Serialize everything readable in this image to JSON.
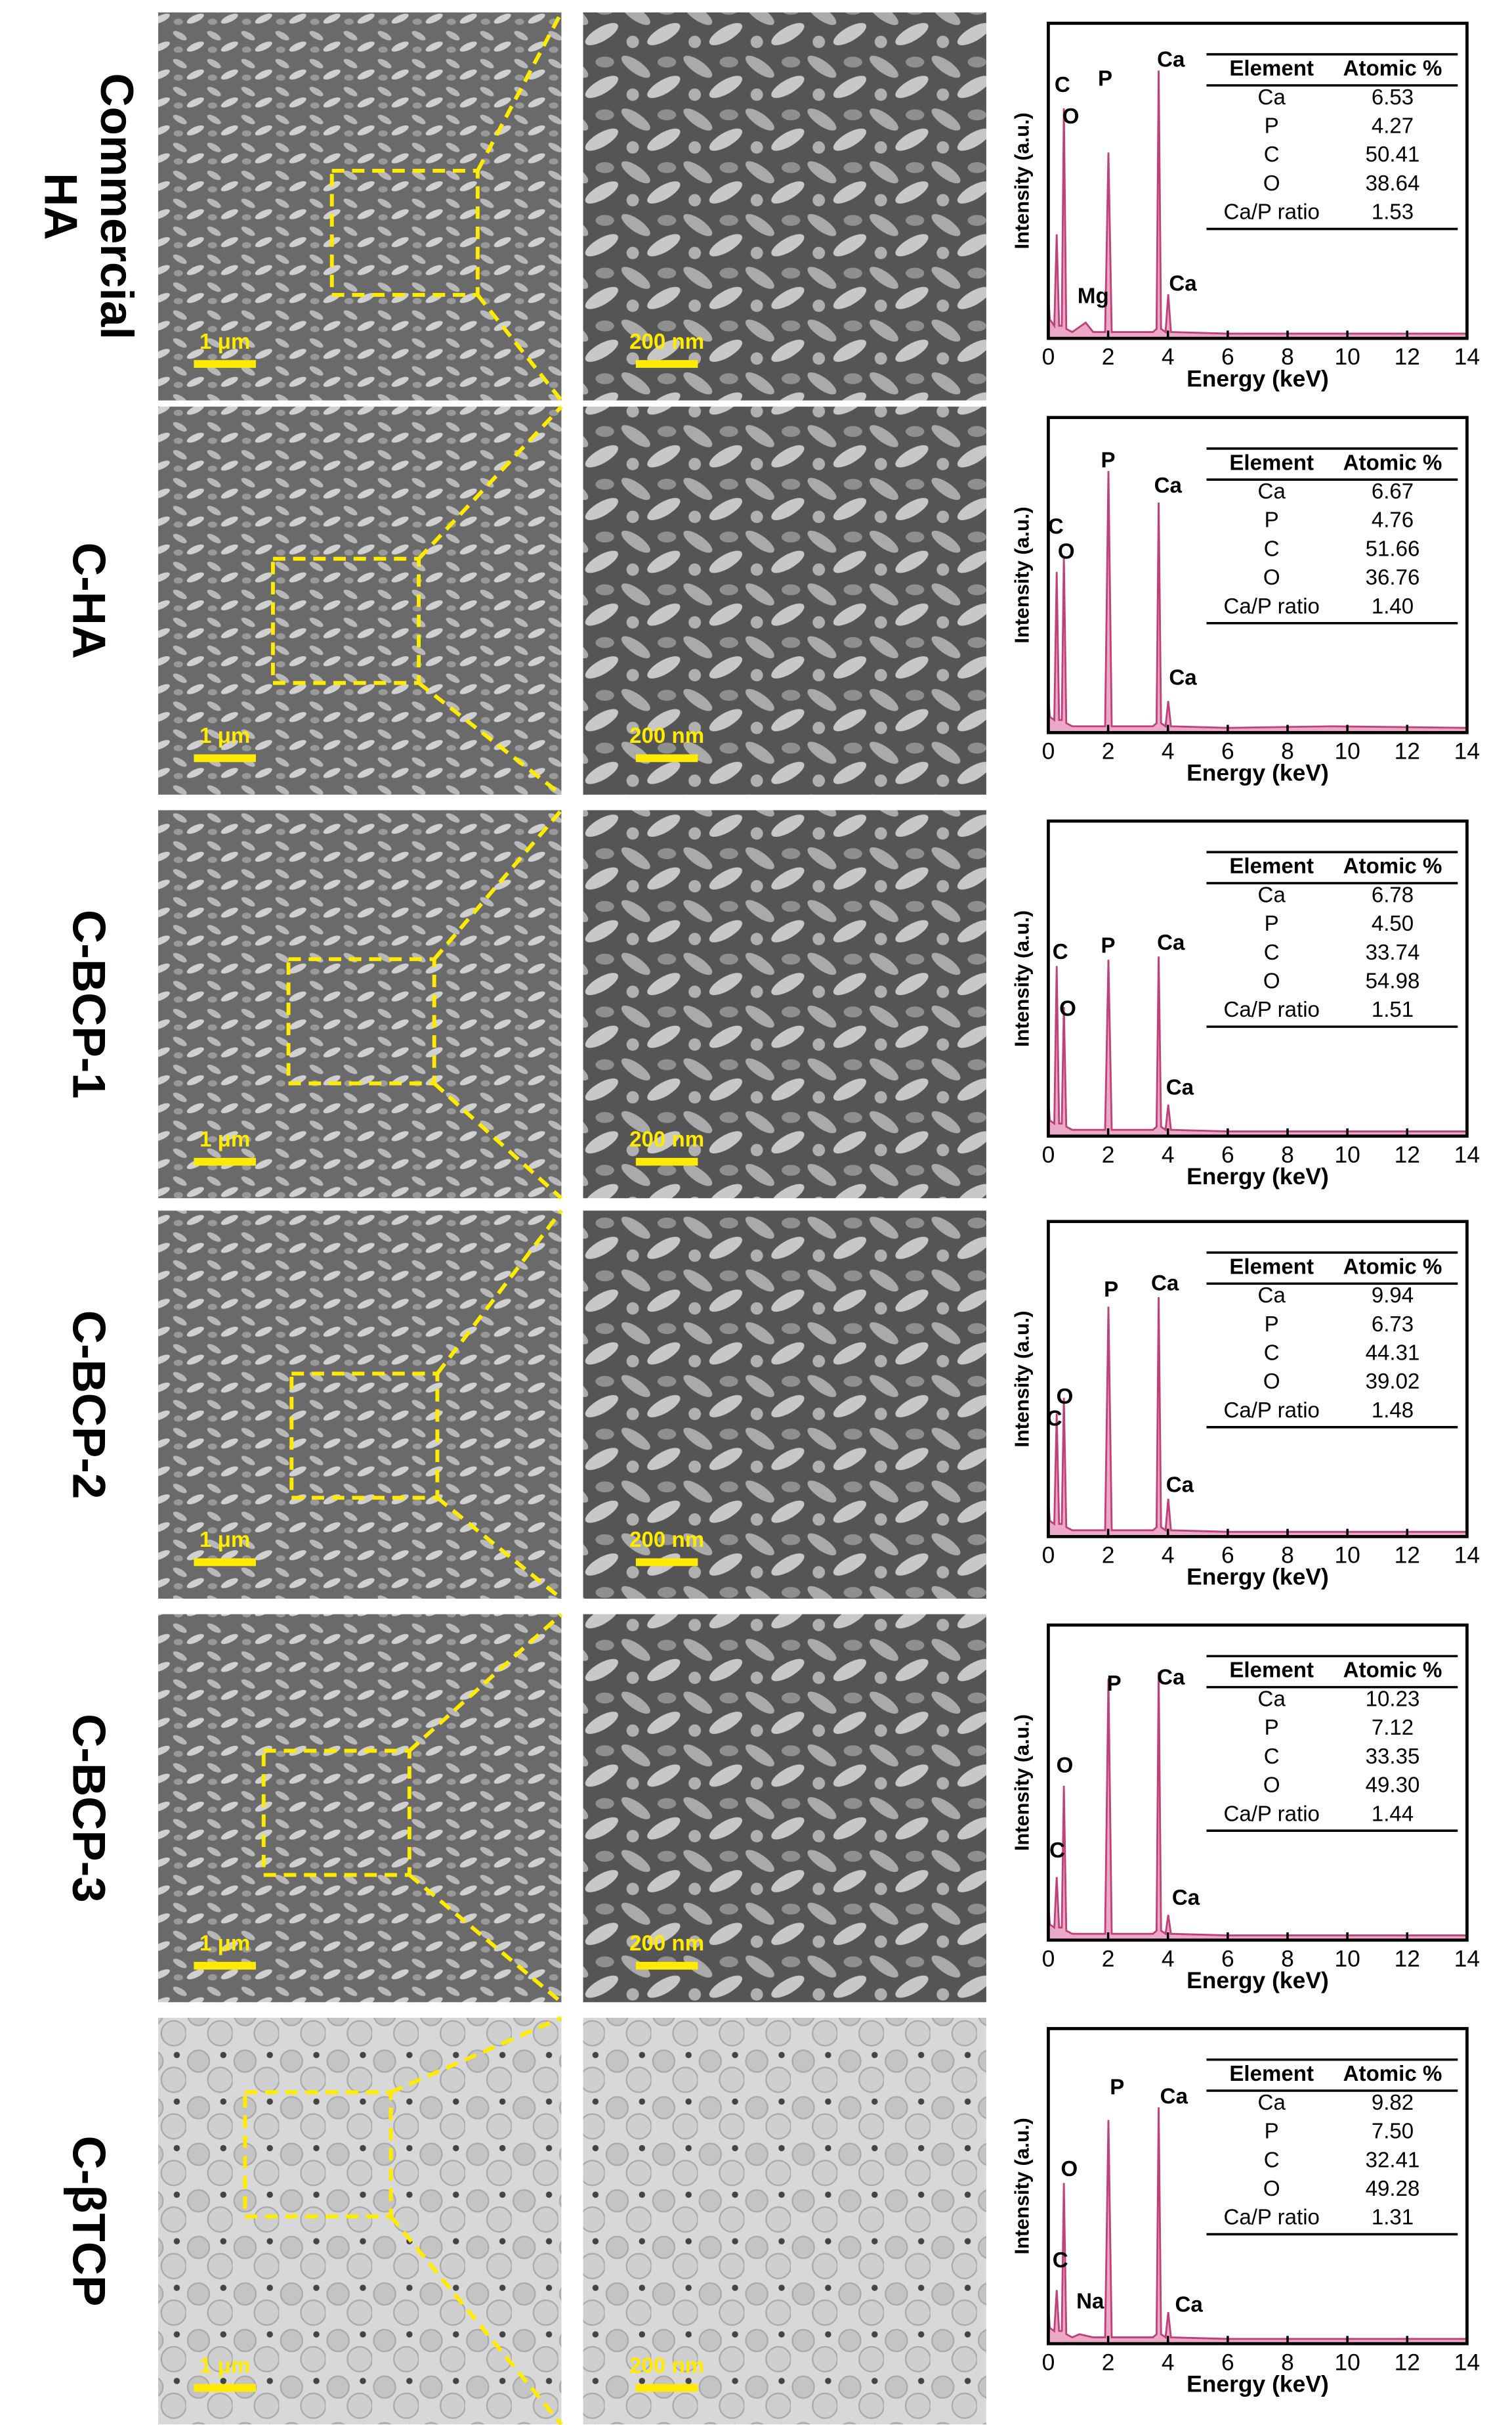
{
  "rows": [
    {
      "label": [
        "Commercial",
        "HA"
      ],
      "scale_bars": [
        "1 μm",
        "200 nm"
      ]
    },
    {
      "label": [
        "C-HA"
      ],
      "scale_bars": [
        "1 μm",
        "200 nm"
      ]
    },
    {
      "label": [
        "C-BCP-1"
      ],
      "scale_bars": [
        "1 μm",
        "200 nm"
      ]
    },
    {
      "label": [
        "C-BCP-2"
      ],
      "scale_bars": [
        "1 μm",
        "200 nm"
      ]
    },
    {
      "label": [
        "C-BCP-3"
      ],
      "scale_bars": [
        "1 μm",
        "200 nm"
      ]
    },
    {
      "label": [
        "C-βTCP"
      ],
      "scale_bars": [
        "1 μm",
        "200 nm"
      ]
    }
  ],
  "chart_data": [
    {
      "type": "line",
      "xlabel": "Energy (keV)",
      "ylabel": "Intensity (a.u.)",
      "xlim": [
        0,
        14
      ],
      "xticks": [
        0,
        2,
        4,
        6,
        8,
        10,
        12,
        14
      ],
      "ylim": [
        0,
        100
      ],
      "color": "#e58cb4",
      "x": [
        0,
        0.05,
        0.2,
        0.28,
        0.36,
        0.45,
        0.52,
        0.6,
        0.8,
        1.25,
        1.5,
        1.9,
        2.01,
        2.12,
        3.5,
        3.62,
        3.69,
        3.77,
        3.92,
        4.01,
        4.1,
        6,
        9.5,
        14
      ],
      "values": [
        14,
        6,
        4,
        33,
        4,
        4,
        73,
        3,
        2,
        5,
        2,
        2,
        59,
        2,
        2,
        3,
        85,
        3,
        2,
        14,
        2,
        1.5,
        1.5,
        1.5
      ],
      "annotations": [
        {
          "text": "C",
          "x": 0.47,
          "y": 80
        },
        {
          "text": "O",
          "x": 0.75,
          "y": 70
        },
        {
          "text": "P",
          "x": 1.9,
          "y": 82
        },
        {
          "text": "Ca",
          "x": 4.1,
          "y": 88
        },
        {
          "text": "Ca",
          "x": 4.5,
          "y": 17
        },
        {
          "text": "Mg",
          "x": 1.5,
          "y": 13
        }
      ],
      "table": {
        "header": [
          "Element",
          "Atomic %"
        ],
        "rows": [
          [
            "Ca",
            "6.53"
          ],
          [
            "P",
            "4.27"
          ],
          [
            "C",
            "50.41"
          ],
          [
            "O",
            "38.64"
          ],
          [
            "Ca/P ratio",
            "1.53"
          ]
        ]
      }
    },
    {
      "type": "line",
      "xlabel": "Energy (keV)",
      "ylabel": "Intensity (a.u.)",
      "xlim": [
        0,
        14
      ],
      "xticks": [
        0,
        2,
        4,
        6,
        8,
        10,
        12,
        14
      ],
      "ylim": [
        0,
        100
      ],
      "color": "#e58cb4",
      "x": [
        0,
        0.05,
        0.2,
        0.28,
        0.36,
        0.45,
        0.52,
        0.6,
        0.8,
        1.25,
        1.5,
        1.9,
        2.01,
        2.12,
        3.5,
        3.62,
        3.69,
        3.77,
        3.92,
        4.01,
        4.1,
        6,
        9.5,
        14
      ],
      "values": [
        12,
        5,
        4,
        51,
        4,
        4,
        56,
        3,
        2,
        2,
        2,
        2,
        83,
        2,
        2,
        3,
        73,
        3,
        2,
        10,
        2,
        1.5,
        2,
        1.5
      ],
      "annotations": [
        {
          "text": "C",
          "x": 0.25,
          "y": 65
        },
        {
          "text": "O",
          "x": 0.6,
          "y": 57
        },
        {
          "text": "P",
          "x": 2.0,
          "y": 86
        },
        {
          "text": "Ca",
          "x": 4.0,
          "y": 78
        },
        {
          "text": "Ca",
          "x": 4.5,
          "y": 17
        }
      ],
      "table": {
        "header": [
          "Element",
          "Atomic %"
        ],
        "rows": [
          [
            "Ca",
            "6.67"
          ],
          [
            "P",
            "4.76"
          ],
          [
            "C",
            "51.66"
          ],
          [
            "O",
            "36.76"
          ],
          [
            "Ca/P ratio",
            "1.40"
          ]
        ]
      }
    },
    {
      "type": "line",
      "xlabel": "Energy (keV)",
      "ylabel": "Intensity (a.u.)",
      "xlim": [
        0,
        14
      ],
      "xticks": [
        0,
        2,
        4,
        6,
        8,
        10,
        12,
        14
      ],
      "ylim": [
        0,
        100
      ],
      "color": "#e58cb4",
      "x": [
        0,
        0.05,
        0.2,
        0.28,
        0.36,
        0.45,
        0.52,
        0.6,
        0.8,
        1.25,
        1.5,
        1.9,
        2.01,
        2.12,
        3.5,
        3.62,
        3.69,
        3.77,
        3.92,
        4.01,
        4.1,
        6,
        9.5,
        14
      ],
      "values": [
        12,
        5,
        4,
        54,
        4,
        4,
        41,
        3,
        2,
        2,
        2,
        2,
        56,
        2,
        2,
        3,
        57,
        3,
        2,
        10,
        2,
        1.5,
        1.5,
        1.5
      ],
      "annotations": [
        {
          "text": "C",
          "x": 0.4,
          "y": 58
        },
        {
          "text": "O",
          "x": 0.65,
          "y": 40
        },
        {
          "text": "P",
          "x": 2.0,
          "y": 60
        },
        {
          "text": "Ca",
          "x": 4.1,
          "y": 61
        },
        {
          "text": "Ca",
          "x": 4.4,
          "y": 15
        }
      ],
      "table": {
        "header": [
          "Element",
          "Atomic %"
        ],
        "rows": [
          [
            "Ca",
            "6.78"
          ],
          [
            "P",
            "4.50"
          ],
          [
            "C",
            "33.74"
          ],
          [
            "O",
            "54.98"
          ],
          [
            "Ca/P ratio",
            "1.51"
          ]
        ]
      }
    },
    {
      "type": "line",
      "xlabel": "Energy (keV)",
      "ylabel": "Intensity (a.u.)",
      "xlim": [
        0,
        14
      ],
      "xticks": [
        0,
        2,
        4,
        6,
        8,
        10,
        12,
        14
      ],
      "ylim": [
        0,
        100
      ],
      "color": "#e58cb4",
      "x": [
        0,
        0.05,
        0.2,
        0.28,
        0.36,
        0.45,
        0.52,
        0.6,
        0.8,
        1.25,
        1.5,
        1.9,
        2.01,
        2.12,
        3.5,
        3.62,
        3.69,
        3.77,
        3.92,
        4.01,
        4.1,
        6,
        9.5,
        14
      ],
      "values": [
        12,
        5,
        4,
        39,
        4,
        4,
        44,
        3,
        2,
        2,
        2,
        2,
        73,
        2,
        2,
        3,
        76,
        3,
        2,
        12,
        2,
        1.5,
        1.5,
        1.5
      ],
      "annotations": [
        {
          "text": "C",
          "x": 0.2,
          "y": 37
        },
        {
          "text": "O",
          "x": 0.55,
          "y": 44
        },
        {
          "text": "P",
          "x": 2.1,
          "y": 78
        },
        {
          "text": "Ca",
          "x": 3.9,
          "y": 80
        },
        {
          "text": "Ca",
          "x": 4.4,
          "y": 16
        }
      ],
      "table": {
        "header": [
          "Element",
          "Atomic %"
        ],
        "rows": [
          [
            "Ca",
            "9.94"
          ],
          [
            "P",
            "6.73"
          ],
          [
            "C",
            "44.31"
          ],
          [
            "O",
            "39.02"
          ],
          [
            "Ca/P ratio",
            "1.48"
          ]
        ]
      }
    },
    {
      "type": "line",
      "xlabel": "Energy (keV)",
      "ylabel": "Intensity (a.u.)",
      "xlim": [
        0,
        14
      ],
      "xticks": [
        0,
        2,
        4,
        6,
        8,
        10,
        12,
        14
      ],
      "ylim": [
        0,
        100
      ],
      "color": "#e58cb4",
      "x": [
        0,
        0.05,
        0.2,
        0.28,
        0.36,
        0.45,
        0.52,
        0.6,
        0.8,
        1.25,
        1.5,
        1.9,
        2.01,
        2.12,
        3.5,
        3.62,
        3.69,
        3.77,
        3.92,
        4.01,
        4.1,
        6,
        9.5,
        14
      ],
      "values": [
        12,
        5,
        4,
        20,
        4,
        4,
        49,
        3,
        2,
        2,
        2,
        2,
        83,
        2,
        2,
        3,
        85,
        3,
        2,
        8,
        2,
        1.5,
        1.5,
        1.5
      ],
      "annotations": [
        {
          "text": "C",
          "x": 0.3,
          "y": 28
        },
        {
          "text": "O",
          "x": 0.55,
          "y": 55
        },
        {
          "text": "P",
          "x": 2.2,
          "y": 81
        },
        {
          "text": "Ca",
          "x": 4.1,
          "y": 83
        },
        {
          "text": "Ca",
          "x": 4.6,
          "y": 13
        }
      ],
      "table": {
        "header": [
          "Element",
          "Atomic %"
        ],
        "rows": [
          [
            "Ca",
            "10.23"
          ],
          [
            "P",
            "7.12"
          ],
          [
            "C",
            "33.35"
          ],
          [
            "O",
            "49.30"
          ],
          [
            "Ca/P ratio",
            "1.44"
          ]
        ]
      }
    },
    {
      "type": "line",
      "xlabel": "Energy (keV)",
      "ylabel": "Intensity (a.u.)",
      "xlim": [
        0,
        14
      ],
      "xticks": [
        0,
        2,
        4,
        6,
        8,
        10,
        12,
        14
      ],
      "ylim": [
        0,
        100
      ],
      "color": "#e58cb4",
      "x": [
        0,
        0.05,
        0.2,
        0.28,
        0.36,
        0.45,
        0.52,
        0.6,
        0.8,
        1.04,
        1.5,
        1.9,
        2.01,
        2.12,
        3.5,
        3.62,
        3.69,
        3.77,
        3.92,
        4.01,
        4.1,
        6,
        9.5,
        14
      ],
      "values": [
        12,
        5,
        4,
        17,
        4,
        4,
        51,
        3,
        2,
        3,
        2,
        2,
        71,
        2,
        2,
        3,
        75,
        3,
        2,
        10,
        2,
        1.5,
        1.5,
        1.5
      ],
      "annotations": [
        {
          "text": "C",
          "x": 0.4,
          "y": 26
        },
        {
          "text": "O",
          "x": 0.7,
          "y": 55
        },
        {
          "text": "Na",
          "x": 1.4,
          "y": 13
        },
        {
          "text": "P",
          "x": 2.3,
          "y": 81
        },
        {
          "text": "Ca",
          "x": 4.2,
          "y": 78
        },
        {
          "text": "Ca",
          "x": 4.7,
          "y": 12
        }
      ],
      "table": {
        "header": [
          "Element",
          "Atomic %"
        ],
        "rows": [
          [
            "Ca",
            "9.82"
          ],
          [
            "P",
            "7.50"
          ],
          [
            "C",
            "32.41"
          ],
          [
            "O",
            "49.28"
          ],
          [
            "Ca/P ratio",
            "1.31"
          ]
        ]
      }
    }
  ]
}
